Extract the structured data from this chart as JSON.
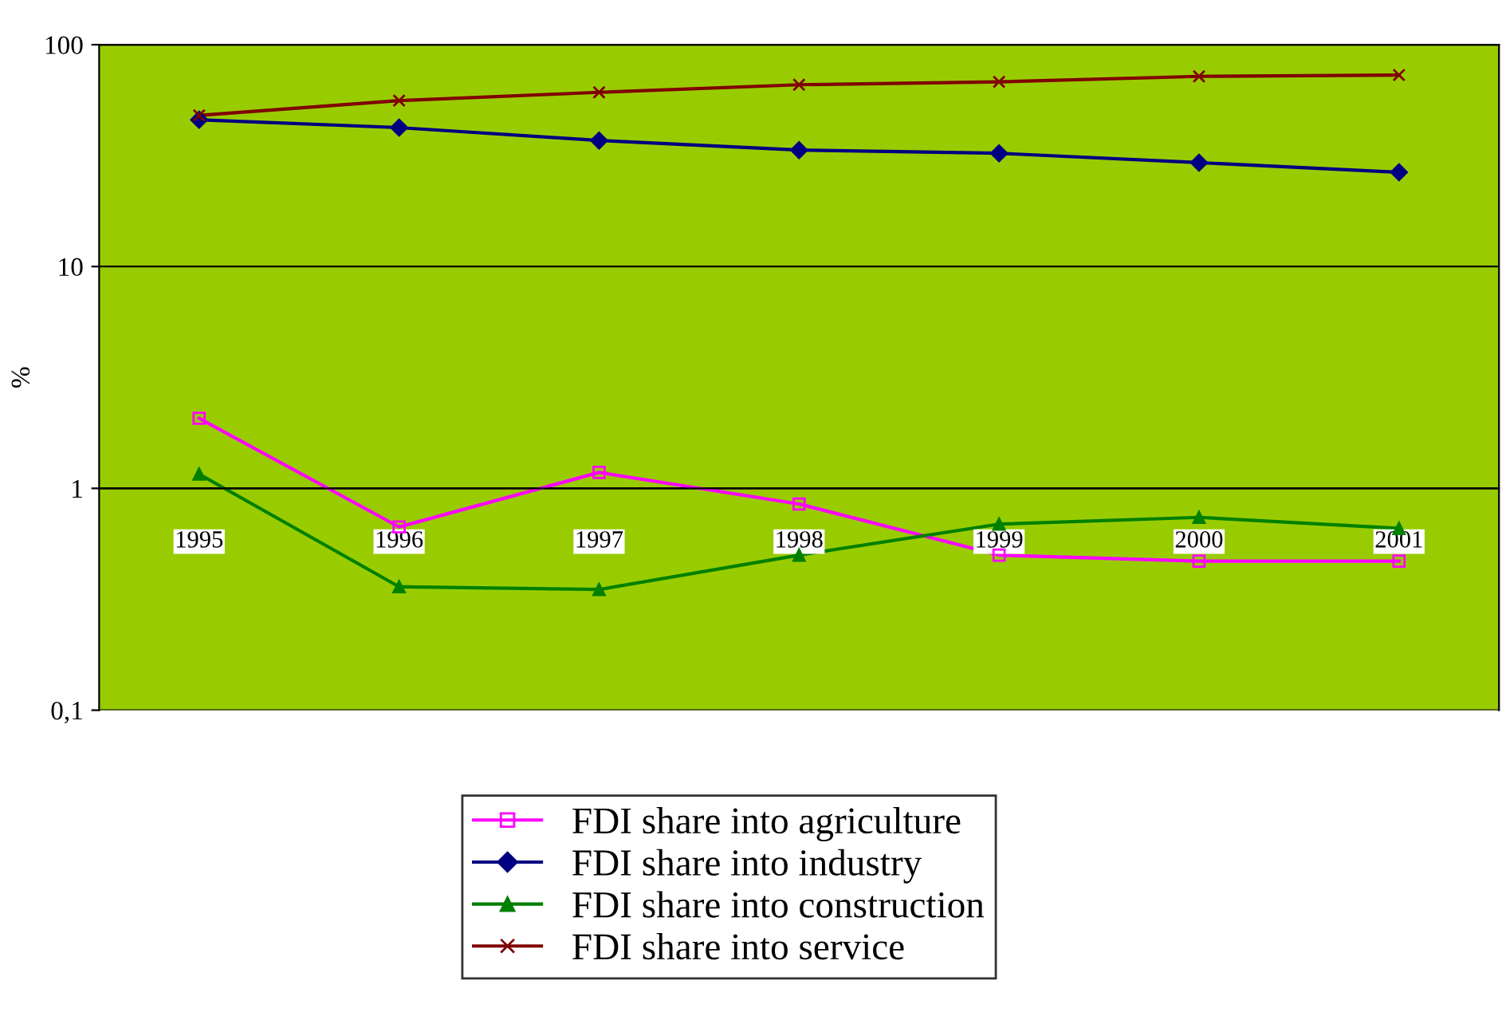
{
  "chart_data": {
    "type": "line",
    "ylabel": "%",
    "log": "y",
    "categories": [
      "1995",
      "1996",
      "1997",
      "1998",
      "1999",
      "2000",
      "2001"
    ],
    "ylim": [
      0.1,
      100
    ],
    "yticks": [
      {
        "value": 0.1,
        "label": "0,1"
      },
      1,
      10,
      100
    ],
    "grid": "y",
    "legend": "bottom",
    "series": [
      {
        "name": "FDI share into agriculture",
        "color": "#ff00ff",
        "marker": "square",
        "values": [
          2.07,
          0.67,
          1.18,
          0.85,
          0.5,
          0.47,
          0.47
        ]
      },
      {
        "name": "FDI share into industry",
        "color": "#000080",
        "marker": "diamond",
        "values": [
          45.9,
          42.3,
          37,
          33.5,
          32.4,
          29.4,
          26.6
        ]
      },
      {
        "name": "FDI share into construction",
        "color": "#008000",
        "marker": "triangle",
        "values": [
          1.16,
          0.36,
          0.35,
          0.5,
          0.69,
          0.74,
          0.66
        ]
      },
      {
        "name": "FDI share into service",
        "color": "#800000",
        "marker": "cross",
        "values": [
          48,
          56,
          61,
          66,
          68,
          72,
          73
        ]
      }
    ]
  }
}
